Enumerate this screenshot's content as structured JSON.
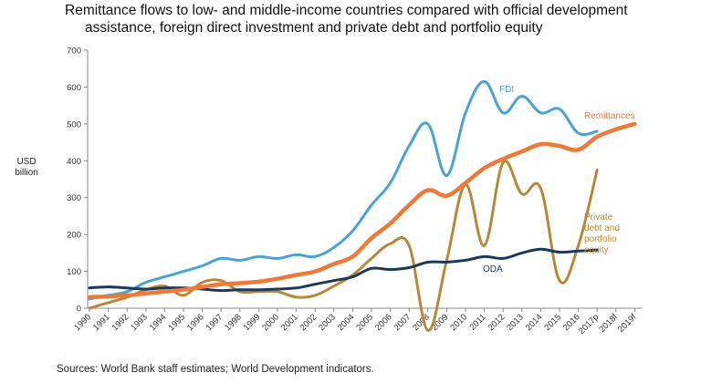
{
  "title_line1": "Remittance flows to low- and middle-income countries compared with official development",
  "title_line2": "assistance, foreign direct investment and private debt and portfolio equity",
  "y_unit": "USD billion",
  "source": "Sources: World Bank staff estimates; World Development indicators.",
  "chart_data": {
    "type": "line",
    "title": "Remittance flows to low- and middle-income countries compared with official development assistance, foreign direct investment and private debt and portfolio equity",
    "ylabel": "USD billion",
    "ylim": [
      0,
      700
    ],
    "yticks": [
      0,
      100,
      200,
      300,
      400,
      500,
      600,
      700
    ],
    "categories": [
      "1990",
      "1991",
      "1992",
      "1993",
      "1994",
      "1995",
      "1996",
      "1997",
      "1998",
      "1999",
      "2000",
      "2001",
      "2002",
      "2003",
      "2004",
      "2005",
      "2006",
      "2007",
      "2008",
      "2009",
      "2010",
      "2011",
      "2012",
      "2013",
      "2014",
      "2015",
      "2016",
      "2017p",
      "2018f",
      "2019f"
    ],
    "grid": false,
    "legend": "inline labels at line ends",
    "series": [
      {
        "name": "FDI",
        "color": "#4aa3d4",
        "values": [
          25,
          35,
          45,
          70,
          85,
          100,
          115,
          135,
          130,
          140,
          135,
          145,
          140,
          165,
          210,
          280,
          340,
          440,
          500,
          360,
          530,
          615,
          530,
          575,
          530,
          540,
          475,
          480,
          null,
          null
        ]
      },
      {
        "name": "Remittances",
        "color": "#ec7b3a",
        "values": [
          30,
          32,
          35,
          40,
          45,
          50,
          58,
          65,
          68,
          72,
          80,
          90,
          100,
          120,
          140,
          190,
          230,
          280,
          320,
          305,
          340,
          380,
          405,
          425,
          445,
          440,
          430,
          465,
          485,
          500
        ]
      },
      {
        "name": "Private debt and portfolio equity",
        "color": "#b7883a",
        "values": [
          0,
          15,
          30,
          50,
          60,
          35,
          70,
          75,
          45,
          45,
          45,
          30,
          35,
          60,
          90,
          135,
          175,
          170,
          -60,
          130,
          335,
          170,
          395,
          310,
          325,
          75,
          170,
          375,
          null,
          null
        ]
      },
      {
        "name": "ODA",
        "color": "#1a3a5c",
        "values": [
          55,
          58,
          55,
          52,
          55,
          55,
          52,
          48,
          50,
          50,
          52,
          55,
          65,
          75,
          85,
          108,
          105,
          110,
          125,
          125,
          130,
          140,
          135,
          150,
          160,
          152,
          155,
          158,
          null,
          null
        ]
      }
    ]
  }
}
